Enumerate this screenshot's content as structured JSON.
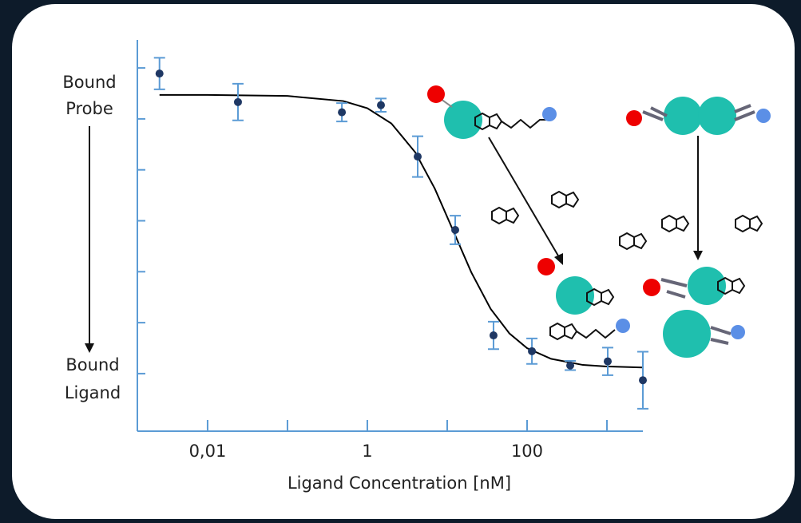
{
  "chart_data": {
    "type": "scatter",
    "y_top_label": [
      "Bound",
      "Probe"
    ],
    "y_bottom_label": [
      "Bound",
      "Ligand"
    ],
    "x_label": "Ligand Concentration [nM]",
    "xscale": "log",
    "xlim": [
      0.00132,
      2818
    ],
    "xticks": [
      {
        "value": 0.01,
        "label": "0,01"
      },
      1,
      100
    ],
    "xminor_ticks": [
      0.1,
      10,
      1000
    ],
    "ylim": [
      -1.13,
      6.55
    ],
    "yticks": [
      0,
      1,
      2,
      3,
      4,
      5,
      6
    ],
    "axis_color": "#5b9bd5",
    "series": [
      {
        "color": "#1f3864",
        "error_color": "#5b9bd5",
        "x": [
          0.0025,
          0.024,
          0.48,
          1.48,
          4.27,
          12.6,
          38,
          115,
          347,
          1023,
          2818
        ],
        "values": [
          5.89,
          5.33,
          5.13,
          5.27,
          4.26,
          2.82,
          0.75,
          0.44,
          0.16,
          0.24,
          -0.13
        ],
        "errors": [
          0.31,
          0.36,
          0.18,
          0.13,
          0.4,
          0.28,
          0.27,
          0.25,
          0.09,
          0.27,
          0.56
        ]
      },
      {
        "type": "line",
        "color": "#000000",
        "x": [
          0.0025,
          0.01,
          0.1,
          0.5,
          1,
          2,
          4,
          7,
          12,
          20,
          35,
          60,
          100,
          200,
          500,
          1000,
          2818
        ],
        "values": [
          5.47,
          5.47,
          5.45,
          5.35,
          5.21,
          4.91,
          4.34,
          3.63,
          2.79,
          1.99,
          1.27,
          0.79,
          0.5,
          0.29,
          0.17,
          0.14,
          0.12
        ]
      }
    ]
  }
}
